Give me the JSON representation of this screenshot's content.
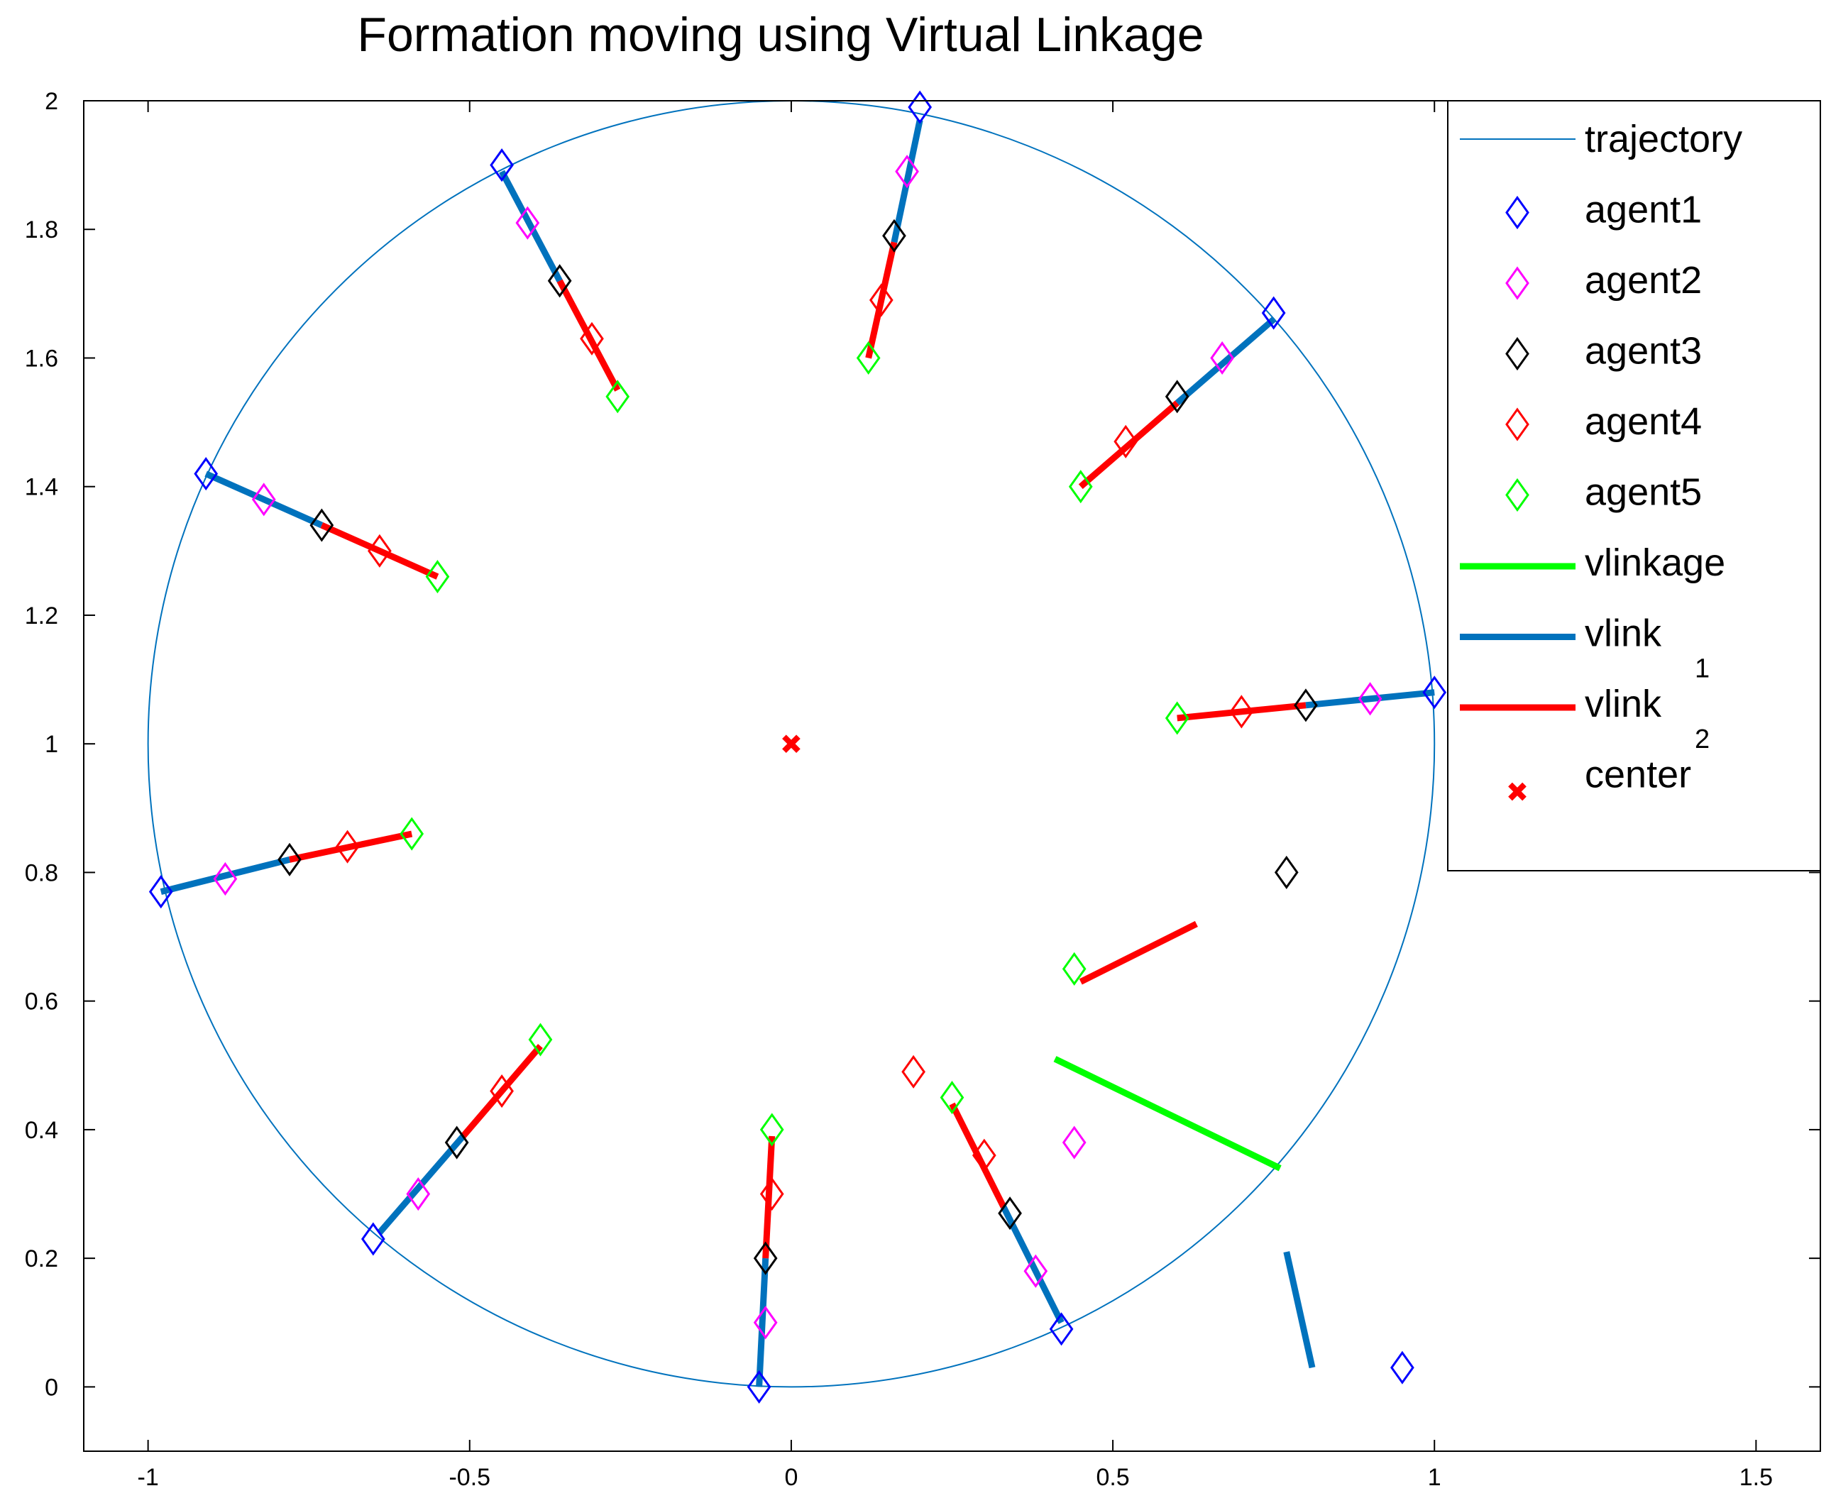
{
  "chart_data": {
    "type": "scatter",
    "title": "Formation moving using Virtual Linkage",
    "xlabel": "",
    "ylabel": "",
    "xlim": [
      -1.1,
      1.6
    ],
    "ylim": [
      -0.1,
      2.0
    ],
    "xticks": [
      -1,
      -0.5,
      0,
      0.5,
      1,
      1.5
    ],
    "xtick_labels": [
      "-1",
      "-0.5",
      "0",
      "0.5",
      "1",
      "1.5"
    ],
    "yticks": [
      0,
      0.2,
      0.4,
      0.6,
      0.8,
      1,
      1.2,
      1.4,
      1.6,
      1.8,
      2
    ],
    "ytick_labels": [
      "0",
      "0.2",
      "0.4",
      "0.6",
      "0.8",
      "1",
      "1.2",
      "1.4",
      "1.6",
      "1.8",
      "2"
    ],
    "grid": false,
    "legend_position": "top-right",
    "colors": {
      "trajectory": "#0072bd",
      "agent1": "#0000ff",
      "agent2": "#ff00ff",
      "agent3": "#000000",
      "agent4": "#ff0000",
      "agent5": "#00ff00",
      "vlinkage": "#00ff00",
      "vlink1": "#0072bd",
      "vlink2": "#ff0000",
      "center": "#ff0000"
    },
    "legend": [
      {
        "key": "trajectory",
        "label": "trajectory",
        "sub": "",
        "style": "thin-line"
      },
      {
        "key": "agent1",
        "label": "agent1",
        "sub": "",
        "style": "diamond"
      },
      {
        "key": "agent2",
        "label": "agent2",
        "sub": "",
        "style": "diamond"
      },
      {
        "key": "agent3",
        "label": "agent3",
        "sub": "",
        "style": "diamond"
      },
      {
        "key": "agent4",
        "label": "agent4",
        "sub": "",
        "style": "diamond"
      },
      {
        "key": "agent5",
        "label": "agent5",
        "sub": "",
        "style": "diamond"
      },
      {
        "key": "vlinkage",
        "label": "vlinkage",
        "sub": "",
        "style": "thick-line"
      },
      {
        "key": "vlink1",
        "label": "vlink",
        "sub": "1",
        "style": "thick-line"
      },
      {
        "key": "vlink2",
        "label": "vlink",
        "sub": "2",
        "style": "thick-line"
      },
      {
        "key": "center",
        "label": "center",
        "sub": "",
        "style": "x-mark"
      }
    ],
    "trajectory": {
      "cx": 0,
      "cy": 1,
      "r": 1
    },
    "center": {
      "x": 0,
      "y": 1
    },
    "formations": [
      {
        "agents": [
          [
            0.2,
            1.99
          ],
          [
            0.18,
            1.89
          ],
          [
            0.16,
            1.79
          ],
          [
            0.14,
            1.69
          ],
          [
            0.12,
            1.6
          ]
        ],
        "vlink1": [
          [
            0.2,
            1.97
          ],
          [
            0.16,
            1.78
          ]
        ],
        "vlink2": [
          [
            0.16,
            1.78
          ],
          [
            0.12,
            1.6
          ]
        ]
      },
      {
        "agents": [
          [
            0.75,
            1.67
          ],
          [
            0.67,
            1.6
          ],
          [
            0.6,
            1.54
          ],
          [
            0.52,
            1.47
          ],
          [
            0.45,
            1.4
          ]
        ],
        "vlink1": [
          [
            0.75,
            1.66
          ],
          [
            0.6,
            1.53
          ]
        ],
        "vlink2": [
          [
            0.6,
            1.53
          ],
          [
            0.45,
            1.4
          ]
        ]
      },
      {
        "agents": [
          [
            1.0,
            1.08
          ],
          [
            0.9,
            1.07
          ],
          [
            0.8,
            1.06
          ],
          [
            0.7,
            1.05
          ],
          [
            0.6,
            1.04
          ]
        ],
        "vlink1": [
          [
            1.0,
            1.08
          ],
          [
            0.8,
            1.06
          ]
        ],
        "vlink2": [
          [
            0.8,
            1.06
          ],
          [
            0.6,
            1.04
          ]
        ]
      },
      {
        "agents": [
          [
            0.95,
            0.03
          ],
          [
            0.44,
            0.38
          ],
          [
            0.77,
            0.8
          ],
          [
            0.19,
            0.49
          ],
          [
            0.44,
            0.65
          ]
        ],
        "vlink1": [
          [
            0.77,
            0.21
          ],
          [
            0.81,
            0.03
          ]
        ],
        "vlink2": [
          [
            0.45,
            0.63
          ],
          [
            0.63,
            0.72
          ]
        ]
      },
      {
        "agents": [
          [
            0.42,
            0.09
          ],
          [
            0.38,
            0.18
          ],
          [
            0.34,
            0.27
          ],
          [
            0.3,
            0.36
          ],
          [
            0.25,
            0.45
          ]
        ],
        "vlink1": [
          [
            0.42,
            0.1
          ],
          [
            0.33,
            0.28
          ]
        ],
        "vlink2": [
          [
            0.33,
            0.28
          ],
          [
            0.25,
            0.44
          ]
        ]
      },
      {
        "agents": [
          [
            -0.05,
            0.0
          ],
          [
            -0.04,
            0.1
          ],
          [
            -0.04,
            0.2
          ],
          [
            -0.03,
            0.3
          ],
          [
            -0.03,
            0.4
          ]
        ],
        "vlink1": [
          [
            -0.05,
            0.0
          ],
          [
            -0.04,
            0.2
          ]
        ],
        "vlink2": [
          [
            -0.04,
            0.2
          ],
          [
            -0.03,
            0.39
          ]
        ]
      },
      {
        "agents": [
          [
            -0.65,
            0.23
          ],
          [
            -0.58,
            0.3
          ],
          [
            -0.52,
            0.38
          ],
          [
            -0.45,
            0.46
          ],
          [
            -0.39,
            0.54
          ]
        ],
        "vlink1": [
          [
            -0.64,
            0.24
          ],
          [
            -0.51,
            0.39
          ]
        ],
        "vlink2": [
          [
            -0.51,
            0.39
          ],
          [
            -0.39,
            0.53
          ]
        ]
      },
      {
        "agents": [
          [
            -0.98,
            0.77
          ],
          [
            -0.88,
            0.79
          ],
          [
            -0.78,
            0.82
          ],
          [
            -0.69,
            0.84
          ],
          [
            -0.59,
            0.86
          ]
        ],
        "vlink1": [
          [
            -0.98,
            0.77
          ],
          [
            -0.78,
            0.82
          ]
        ],
        "vlink2": [
          [
            -0.78,
            0.82
          ],
          [
            -0.59,
            0.86
          ]
        ]
      },
      {
        "agents": [
          [
            -0.91,
            1.42
          ],
          [
            -0.82,
            1.38
          ],
          [
            -0.73,
            1.34
          ],
          [
            -0.64,
            1.3
          ],
          [
            -0.55,
            1.26
          ]
        ],
        "vlink1": [
          [
            -0.91,
            1.42
          ],
          [
            -0.73,
            1.34
          ]
        ],
        "vlink2": [
          [
            -0.73,
            1.34
          ],
          [
            -0.55,
            1.26
          ]
        ]
      },
      {
        "agents": [
          [
            -0.45,
            1.9
          ],
          [
            -0.41,
            1.81
          ],
          [
            -0.36,
            1.72
          ],
          [
            -0.31,
            1.63
          ],
          [
            -0.27,
            1.54
          ]
        ],
        "vlink1": [
          [
            -0.45,
            1.89
          ],
          [
            -0.36,
            1.72
          ]
        ],
        "vlink2": [
          [
            -0.36,
            1.72
          ],
          [
            -0.27,
            1.55
          ]
        ]
      }
    ],
    "vlinkage": [
      [
        0.41,
        0.51
      ],
      [
        0.76,
        0.34
      ]
    ]
  }
}
